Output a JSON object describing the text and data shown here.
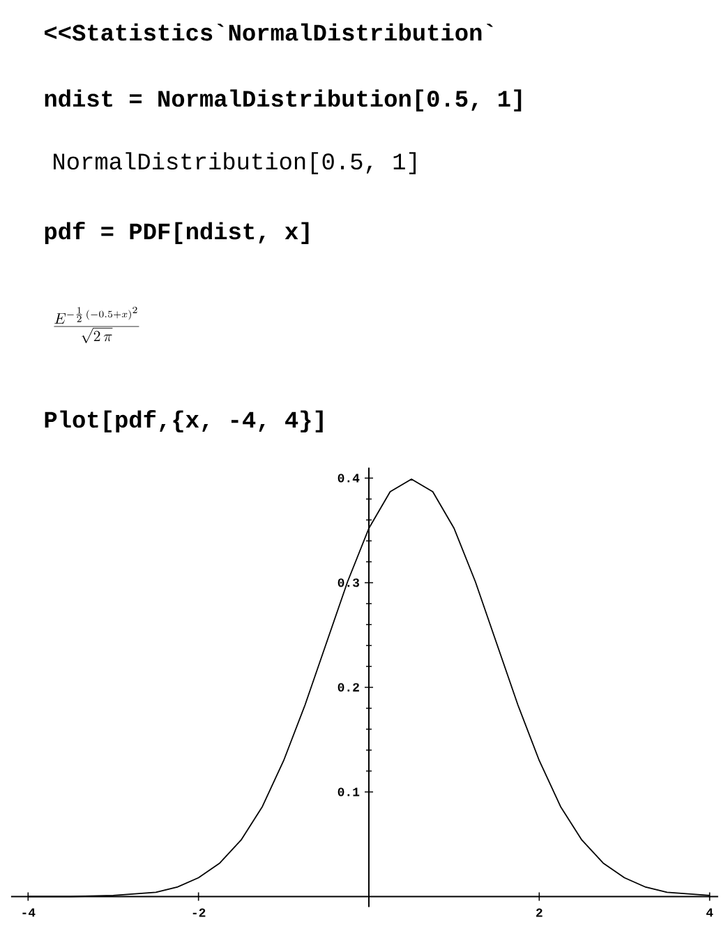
{
  "chart_data": {
    "type": "line",
    "annotations": [
      "<<Statistics`NormalDistribution`",
      "ndist = NormalDistribution[0.5, 1]",
      "NormalDistribution[0.5, 1]",
      "pdf = PDF[ndist, x]",
      "\\frac{E^{-\\frac{1}{2}\\,(-0.5+x)^{2}}}{\\sqrt{2\\,\\pi}}",
      "Plot[pdf,{x, -4, 4}]"
    ],
    "x": [
      -4,
      -3.5,
      -3,
      -2.5,
      -2.25,
      -2,
      -1.75,
      -1.5,
      -1.25,
      -1,
      -0.75,
      -0.5,
      -0.25,
      0,
      0.25,
      0.5,
      0.75,
      1,
      1.25,
      1.5,
      1.75,
      2,
      2.25,
      2.5,
      2.75,
      3,
      3.25,
      3.5,
      4
    ],
    "series": [
      {
        "color": "#000000",
        "values": [
          0,
          0,
          0.001,
          0.004,
          0.009,
          0.018,
          0.032,
          0.054,
          0.086,
          0.13,
          0.183,
          0.242,
          0.301,
          0.352,
          0.387,
          0.399,
          0.387,
          0.352,
          0.301,
          0.242,
          0.183,
          0.13,
          0.086,
          0.054,
          0.032,
          0.018,
          0.009,
          0.004,
          0.001
        ]
      }
    ],
    "xlim": [
      -4.2,
      4.1
    ],
    "ylim": [
      -0.01,
      0.41
    ],
    "xticks": [
      -4,
      -2,
      2,
      4
    ],
    "yticks": [
      0.1,
      0.2,
      0.3,
      0.4
    ],
    "grid": false,
    "marker": "none",
    "line_style": "solid"
  }
}
